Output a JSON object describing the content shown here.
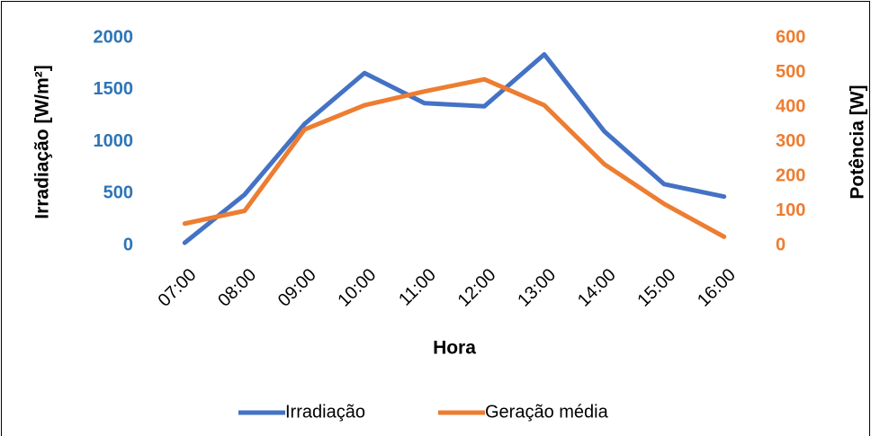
{
  "chart_data": {
    "type": "line",
    "categories": [
      "07:00",
      "08:00",
      "09:00",
      "10:00",
      "11:00",
      "12:00",
      "13:00",
      "14:00",
      "15:00",
      "16:00"
    ],
    "series": [
      {
        "name": "Irradiação",
        "color": "#4472c4",
        "values": [
          25,
          490,
          1170,
          1660,
          1370,
          1340,
          1840,
          1100,
          590,
          470
        ]
      },
      {
        "name": "Geração média",
        "color": "#ed7d31",
        "axis": "y2",
        "values": [
          63,
          100,
          335,
          405,
          445,
          480,
          405,
          235,
          120,
          25
        ]
      }
    ],
    "xlabel": "Hora",
    "ylabel": "Irradiação [W/m²]",
    "y2label": "Potência [W]",
    "ylim": [
      0,
      2000
    ],
    "yticks": [
      0,
      500,
      1000,
      1500,
      2000
    ],
    "ytick_color": "#2e75b6",
    "y2lim": [
      0,
      600
    ],
    "y2ticks": [
      0,
      100,
      200,
      300,
      400,
      500,
      600
    ],
    "y2tick_color": "#ed7d31",
    "grid": false,
    "legend": "bottom"
  }
}
